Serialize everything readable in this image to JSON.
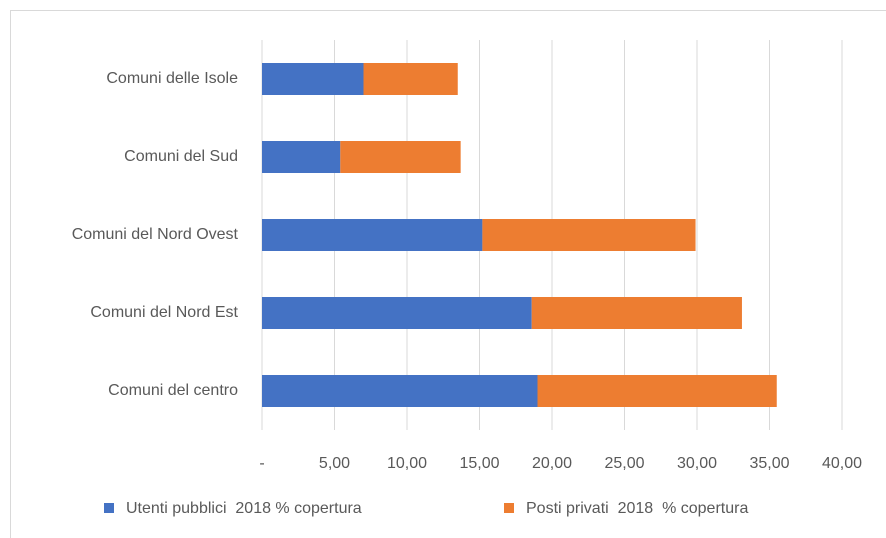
{
  "chart_data": {
    "type": "stacked_bar_horizontal",
    "categories": [
      "Comuni delle Isole",
      "Comuni del Sud",
      "Comuni del Nord Ovest",
      "Comuni del Nord Est",
      "Comuni del centro"
    ],
    "series": [
      {
        "name": "Utenti pubblici  2018 % copertura",
        "color": "#4472c4",
        "values": [
          7.0,
          5.4,
          15.2,
          18.6,
          19.0
        ]
      },
      {
        "name": "Posti privati  2018  % copertura",
        "color": "#ed7d31",
        "values": [
          6.5,
          8.3,
          14.7,
          14.5,
          16.5
        ]
      }
    ],
    "xlim": [
      0,
      40
    ],
    "xticks": [
      {
        "value": 0,
        "label": "-"
      },
      {
        "value": 5,
        "label": "5,00"
      },
      {
        "value": 10,
        "label": "10,00"
      },
      {
        "value": 15,
        "label": "15,00"
      },
      {
        "value": 20,
        "label": "20,00"
      },
      {
        "value": 25,
        "label": "25,00"
      },
      {
        "value": 30,
        "label": "30,00"
      },
      {
        "value": 35,
        "label": "35,00"
      },
      {
        "value": 40,
        "label": "40,00"
      }
    ],
    "grid": true,
    "legend": "bottom"
  }
}
